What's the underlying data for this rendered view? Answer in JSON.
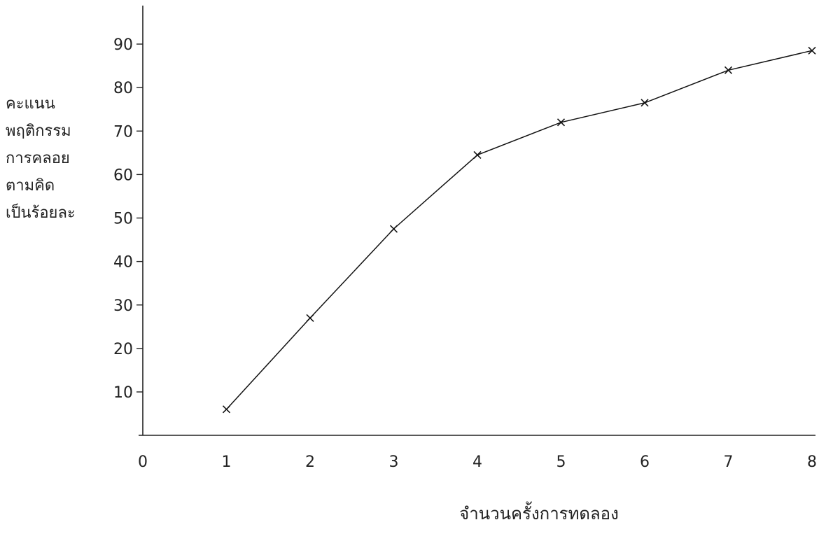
{
  "chart_data": {
    "type": "line",
    "title": "",
    "xlabel": "จำนวนครั้งการทดลอง",
    "ylabel_lines": [
      "คะแนน",
      "พฤติกรรม",
      "การคลอย",
      "ตามคิด",
      "เป็นร้อยละ"
    ],
    "x_ticks": [
      "0",
      "1",
      "2",
      "3",
      "4",
      "5",
      "6",
      "7",
      "8"
    ],
    "y_ticks": [
      "10",
      "20",
      "30",
      "40",
      "50",
      "60",
      "70",
      "80",
      "90"
    ],
    "xlim": [
      0,
      8
    ],
    "ylim": [
      0,
      90
    ],
    "grid": false,
    "series": [
      {
        "x": [
          1,
          2,
          3,
          4,
          5,
          6,
          7,
          8
        ],
        "values": [
          6,
          27,
          47.5,
          64.5,
          72,
          76.5,
          84,
          88.5
        ]
      }
    ],
    "colors": {
      "line": "#111111",
      "axis": "#222222",
      "text": "#222222"
    }
  }
}
